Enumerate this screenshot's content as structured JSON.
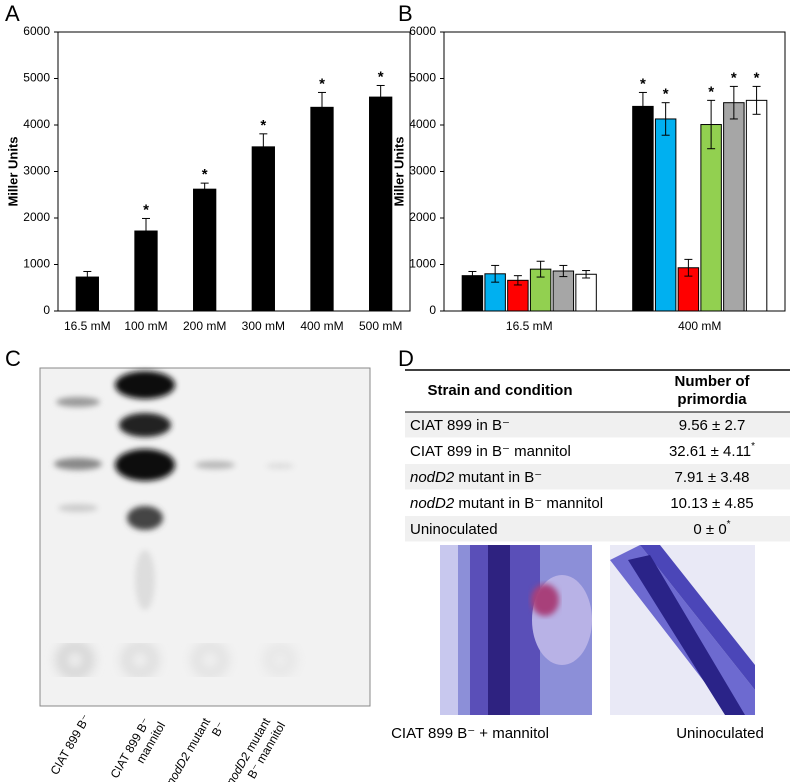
{
  "chart_data": [
    {
      "type": "bar",
      "panel_label": "A",
      "y_label": "Miller Units",
      "categories": [
        "16.5 mM",
        "100 mM",
        "200 mM",
        "300 mM",
        "400 mM",
        "500 mM"
      ],
      "values": [
        730,
        1720,
        2620,
        3530,
        4380,
        4600
      ],
      "errors": [
        120,
        270,
        130,
        280,
        320,
        250
      ],
      "error_direction": "up",
      "annotations": [
        null,
        "*",
        "*",
        "*",
        "*",
        "*"
      ],
      "color": "#000000",
      "ylim": [
        0,
        6000
      ],
      "yticks": [
        0,
        1000,
        2000,
        3000,
        4000,
        5000,
        6000
      ]
    },
    {
      "type": "bar",
      "panel_label": "B",
      "y_label": "Miller Units",
      "categories": [
        "16.5 mM",
        "400 mM"
      ],
      "series": [
        {
          "color": "#000000",
          "values": [
            760,
            4400
          ],
          "errors": [
            90,
            300
          ],
          "annotations": [
            null,
            "*"
          ]
        },
        {
          "color": "#00b0f0",
          "values": [
            800,
            4130
          ],
          "errors": [
            180,
            350
          ],
          "annotations": [
            null,
            "*"
          ]
        },
        {
          "color": "#ff0000",
          "values": [
            660,
            930
          ],
          "errors": [
            100,
            180
          ],
          "annotations": [
            null,
            null
          ]
        },
        {
          "color": "#92d050",
          "values": [
            900,
            4010
          ],
          "errors": [
            170,
            520
          ],
          "annotations": [
            null,
            "*"
          ]
        },
        {
          "color": "#a6a6a6",
          "values": [
            860,
            4480
          ],
          "errors": [
            120,
            350
          ],
          "annotations": [
            null,
            "*"
          ]
        },
        {
          "color": "#ffffff",
          "values": [
            790,
            4530
          ],
          "errors": [
            80,
            300
          ],
          "annotations": [
            null,
            "*"
          ]
        }
      ],
      "error_direction": "both",
      "ylim": [
        0,
        6000
      ],
      "yticks": [
        0,
        1000,
        2000,
        3000,
        4000,
        5000,
        6000
      ]
    }
  ],
  "tlc": {
    "panel_label": "C",
    "lanes": [
      {
        "lines": [
          [
            {
              "text": "CIAT 899 B⁻"
            }
          ]
        ]
      },
      {
        "lines": [
          [
            {
              "text": "CIAT 899 B⁻"
            }
          ],
          [
            {
              "text": "mannitol"
            }
          ]
        ]
      },
      {
        "lines": [
          [
            {
              "text": "nodD2",
              "italic": true
            },
            {
              "text": " mutant"
            }
          ],
          [
            {
              "text": "B⁻"
            }
          ]
        ]
      },
      {
        "lines": [
          [
            {
              "text": "nodD2",
              "italic": true
            },
            {
              "text": " mutant"
            }
          ],
          [
            {
              "text": "B⁻ mannitol"
            }
          ]
        ]
      }
    ]
  },
  "table_panel": {
    "panel_label": "D",
    "header": [
      [
        "Strain and condition"
      ],
      [
        "Number of",
        "primordia"
      ]
    ],
    "rows": [
      [
        [
          {
            "text": "CIAT 899 in B⁻"
          }
        ],
        [
          {
            "text": "9.56 ± 2.7"
          }
        ]
      ],
      [
        [
          {
            "text": "CIAT 899 in B⁻  mannitol"
          }
        ],
        [
          {
            "text": "32.61 ± 4.11"
          },
          {
            "text": "*",
            "sup": true
          }
        ]
      ],
      [
        [
          {
            "text": "nodD2",
            "italic": true
          },
          {
            "text": " mutant  in B⁻"
          }
        ],
        [
          {
            "text": "7.91 ± 3.48"
          }
        ]
      ],
      [
        [
          {
            "text": "nodD2",
            "italic": true
          },
          {
            "text": " mutant in B⁻  mannitol"
          }
        ],
        [
          {
            "text": "10.13 ± 4.85"
          }
        ]
      ],
      [
        [
          {
            "text": "Uninoculated"
          }
        ],
        [
          {
            "text": "0 ± 0"
          },
          {
            "text": "*",
            "sup": true
          }
        ]
      ]
    ],
    "captions": [
      "CIAT 899 B⁻ + mannitol",
      "Uninoculated"
    ]
  }
}
